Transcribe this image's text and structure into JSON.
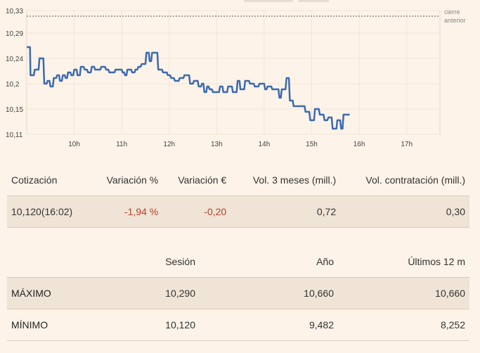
{
  "chart_data": {
    "type": "line",
    "y_ticks": [
      "10,33",
      "10,29",
      "10,24",
      "10,2",
      "10,15",
      "10,11"
    ],
    "x_ticks": [
      "10h",
      "11h",
      "12h",
      "13h",
      "14h",
      "15h",
      "16h",
      "17h"
    ],
    "reference_label_1": "cierre",
    "reference_label_2": "anterior",
    "reference_value": 10.32,
    "line_color": "#3b6ab2",
    "ylim": [
      10.11,
      10.33
    ],
    "xlim_hours": [
      9.0,
      17.7
    ],
    "series": [
      {
        "points": [
          [
            9.0,
            10.265
          ],
          [
            9.07,
            10.265
          ],
          [
            9.08,
            10.215
          ],
          [
            9.15,
            10.215
          ],
          [
            9.17,
            10.225
          ],
          [
            9.25,
            10.225
          ],
          [
            9.27,
            10.245
          ],
          [
            9.35,
            10.245
          ],
          [
            9.37,
            10.2
          ],
          [
            9.42,
            10.2
          ],
          [
            9.44,
            10.205
          ],
          [
            9.48,
            10.205
          ],
          [
            9.5,
            10.195
          ],
          [
            9.55,
            10.195
          ],
          [
            9.57,
            10.21
          ],
          [
            9.62,
            10.21
          ],
          [
            9.64,
            10.215
          ],
          [
            9.68,
            10.215
          ],
          [
            9.7,
            10.205
          ],
          [
            9.74,
            10.205
          ],
          [
            9.76,
            10.215
          ],
          [
            9.8,
            10.215
          ],
          [
            9.82,
            10.21
          ],
          [
            9.85,
            10.21
          ],
          [
            9.87,
            10.22
          ],
          [
            9.92,
            10.22
          ],
          [
            9.94,
            10.215
          ],
          [
            9.98,
            10.215
          ],
          [
            10.0,
            10.225
          ],
          [
            10.05,
            10.225
          ],
          [
            10.07,
            10.215
          ],
          [
            10.12,
            10.215
          ],
          [
            10.14,
            10.23
          ],
          [
            10.2,
            10.23
          ],
          [
            10.22,
            10.225
          ],
          [
            10.27,
            10.225
          ],
          [
            10.29,
            10.22
          ],
          [
            10.35,
            10.22
          ],
          [
            10.37,
            10.23
          ],
          [
            10.42,
            10.23
          ],
          [
            10.44,
            10.225
          ],
          [
            10.55,
            10.225
          ],
          [
            10.57,
            10.23
          ],
          [
            10.65,
            10.23
          ],
          [
            10.67,
            10.225
          ],
          [
            10.72,
            10.225
          ],
          [
            10.74,
            10.22
          ],
          [
            10.85,
            10.22
          ],
          [
            10.87,
            10.225
          ],
          [
            11.0,
            10.225
          ],
          [
            11.02,
            10.22
          ],
          [
            11.05,
            10.22
          ],
          [
            11.07,
            10.215
          ],
          [
            11.1,
            10.215
          ],
          [
            11.12,
            10.225
          ],
          [
            11.2,
            10.225
          ],
          [
            11.22,
            10.22
          ],
          [
            11.27,
            10.22
          ],
          [
            11.29,
            10.225
          ],
          [
            11.33,
            10.225
          ],
          [
            11.35,
            10.23
          ],
          [
            11.4,
            10.23
          ],
          [
            11.42,
            10.235
          ],
          [
            11.5,
            10.235
          ],
          [
            11.52,
            10.255
          ],
          [
            11.57,
            10.255
          ],
          [
            11.59,
            10.24
          ],
          [
            11.62,
            10.24
          ],
          [
            11.64,
            10.255
          ],
          [
            11.75,
            10.255
          ],
          [
            11.77,
            10.225
          ],
          [
            11.85,
            10.225
          ],
          [
            11.87,
            10.22
          ],
          [
            11.95,
            10.22
          ],
          [
            11.97,
            10.215
          ],
          [
            12.02,
            10.215
          ],
          [
            12.04,
            10.21
          ],
          [
            12.1,
            10.21
          ],
          [
            12.12,
            10.205
          ],
          [
            12.2,
            10.205
          ],
          [
            12.22,
            10.21
          ],
          [
            12.3,
            10.21
          ],
          [
            12.32,
            10.215
          ],
          [
            12.42,
            10.215
          ],
          [
            12.44,
            10.2
          ],
          [
            12.5,
            10.2
          ],
          [
            12.52,
            10.205
          ],
          [
            12.6,
            10.205
          ],
          [
            12.62,
            10.195
          ],
          [
            12.67,
            10.195
          ],
          [
            12.69,
            10.2
          ],
          [
            12.72,
            10.2
          ],
          [
            12.74,
            10.185
          ],
          [
            12.78,
            10.185
          ],
          [
            12.8,
            10.195
          ],
          [
            12.83,
            10.195
          ],
          [
            12.85,
            10.19
          ],
          [
            12.9,
            10.19
          ],
          [
            12.92,
            10.185
          ],
          [
            13.05,
            10.185
          ],
          [
            13.07,
            10.195
          ],
          [
            13.12,
            10.195
          ],
          [
            13.14,
            10.185
          ],
          [
            13.22,
            10.185
          ],
          [
            13.24,
            10.195
          ],
          [
            13.32,
            10.195
          ],
          [
            13.34,
            10.185
          ],
          [
            13.42,
            10.185
          ],
          [
            13.44,
            10.205
          ],
          [
            13.48,
            10.205
          ],
          [
            13.5,
            10.19
          ],
          [
            13.58,
            10.19
          ],
          [
            13.6,
            10.205
          ],
          [
            13.68,
            10.205
          ],
          [
            13.7,
            10.2
          ],
          [
            13.78,
            10.2
          ],
          [
            13.8,
            10.195
          ],
          [
            13.88,
            10.195
          ],
          [
            13.9,
            10.2
          ],
          [
            14.0,
            10.2
          ],
          [
            14.02,
            10.19
          ],
          [
            14.05,
            10.19
          ],
          [
            14.07,
            10.195
          ],
          [
            14.15,
            10.195
          ],
          [
            14.17,
            10.19
          ],
          [
            14.3,
            10.19
          ],
          [
            14.32,
            10.175
          ],
          [
            14.35,
            10.175
          ],
          [
            14.37,
            10.19
          ],
          [
            14.45,
            10.19
          ],
          [
            14.47,
            10.21
          ],
          [
            14.52,
            10.21
          ],
          [
            14.54,
            10.17
          ],
          [
            14.6,
            10.17
          ],
          [
            14.62,
            10.16
          ],
          [
            14.85,
            10.16
          ],
          [
            14.87,
            10.15
          ],
          [
            14.95,
            10.15
          ],
          [
            14.97,
            10.135
          ],
          [
            15.05,
            10.135
          ],
          [
            15.07,
            10.155
          ],
          [
            15.15,
            10.155
          ],
          [
            15.17,
            10.145
          ],
          [
            15.25,
            10.145
          ],
          [
            15.27,
            10.135
          ],
          [
            15.33,
            10.135
          ],
          [
            15.35,
            10.14
          ],
          [
            15.42,
            10.14
          ],
          [
            15.44,
            10.12
          ],
          [
            15.52,
            10.12
          ],
          [
            15.54,
            10.135
          ],
          [
            15.6,
            10.135
          ],
          [
            15.62,
            10.12
          ],
          [
            15.65,
            10.12
          ],
          [
            15.67,
            10.145
          ],
          [
            15.8,
            10.145
          ]
        ]
      }
    ]
  },
  "table1": {
    "headers": [
      "Cotización",
      "Variación %",
      "Variación €",
      "Vol. 3 meses (mill.)",
      "Vol. contratación (mill.)"
    ],
    "values": [
      "10,120(16:02)",
      "-1,94 %",
      "-0,20",
      "0,72",
      "0,30"
    ]
  },
  "table2": {
    "headers": [
      "",
      "Sesión",
      "Año",
      "Últimos 12 m"
    ],
    "rows": [
      {
        "label": "MÁXIMO",
        "values": [
          "10,290",
          "10,660",
          "10,660"
        ]
      },
      {
        "label": "MÍNIMO",
        "values": [
          "10,120",
          "9,482",
          "8,252"
        ]
      }
    ]
  },
  "colors": {
    "background": "#fdf3e8",
    "row_shade": "#efe4d6",
    "negative": "#b8402b",
    "line": "#3b6ab2"
  }
}
